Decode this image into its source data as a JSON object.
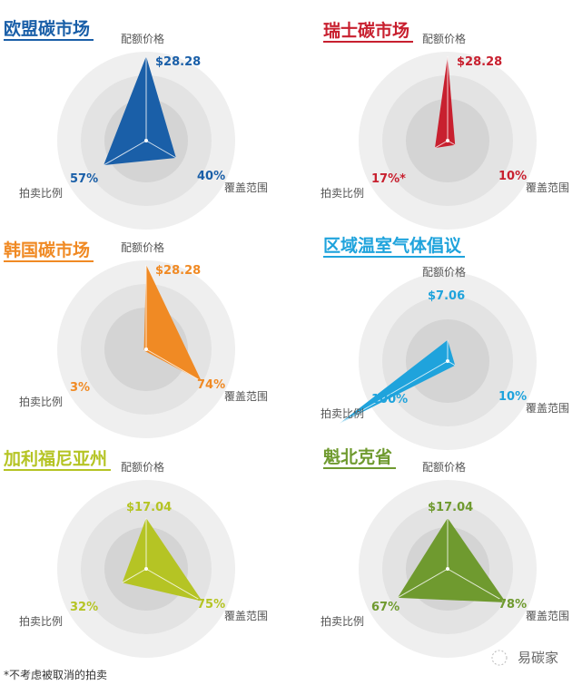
{
  "axes": [
    "配额价格",
    "覆盖范围",
    "拍卖比例"
  ],
  "footnote": "*不考虑被取消的拍卖",
  "watermark": "易碳家",
  "chart_data": [
    {
      "type": "radar",
      "title": "欧盟碳市场",
      "color": "#1a5fa8",
      "price": 28.28,
      "price_label": "$28.28",
      "coverage": 40,
      "coverage_label": "40%",
      "auction": 57,
      "auction_label": "57%"
    },
    {
      "type": "radar",
      "title": "瑞士碳市场",
      "color": "#c8202f",
      "price": 28.28,
      "price_label": "$28.28",
      "coverage": 10,
      "coverage_label": "10%",
      "auction": 17,
      "auction_label": "17%*"
    },
    {
      "type": "radar",
      "title": "韩国碳市场",
      "color": "#f08a24",
      "price": 28.28,
      "price_label": "$28.28",
      "coverage": 74,
      "coverage_label": "74%",
      "auction": 3,
      "auction_label": "3%"
    },
    {
      "type": "radar",
      "title": "区域温室气体倡议",
      "color": "#1fa3dc",
      "price": 7.06,
      "price_label": "$7.06",
      "coverage": 10,
      "coverage_label": "10%",
      "auction": 100,
      "auction_label": "100%"
    },
    {
      "type": "radar",
      "title": "加利福尼亚州",
      "color": "#b5c424",
      "price": 17.04,
      "price_label": "$17.04",
      "coverage": 75,
      "coverage_label": "75%",
      "auction": 32,
      "auction_label": "32%"
    },
    {
      "type": "radar",
      "title": "魁北克省",
      "color": "#6f9a2f",
      "price": 17.04,
      "price_label": "$17.04",
      "coverage": 78,
      "coverage_label": "78%",
      "auction": 67,
      "auction_label": "67%"
    }
  ]
}
